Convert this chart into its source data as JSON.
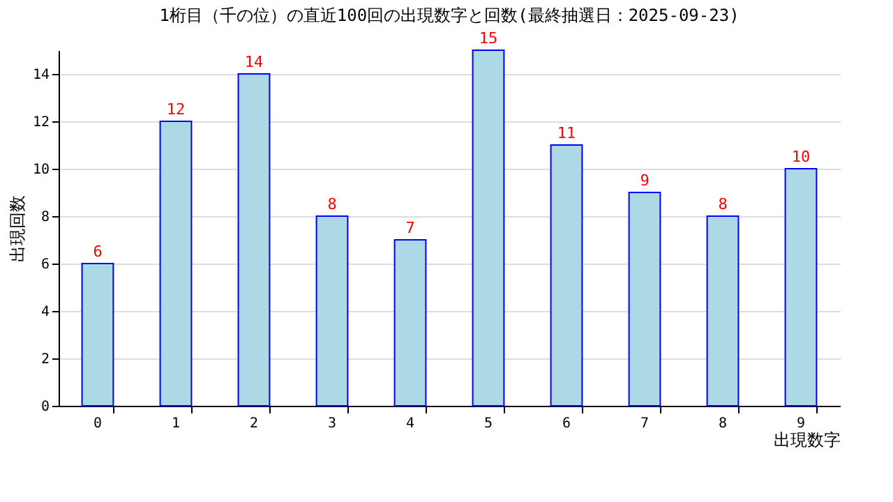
{
  "chart_data": {
    "type": "bar",
    "title": "1桁目（千の位）の直近100回の出現数字と回数(最終抽選日：2025-09-23)",
    "xlabel": "出現数字",
    "ylabel": "出現回数",
    "categories": [
      "0",
      "1",
      "2",
      "3",
      "4",
      "5",
      "6",
      "7",
      "8",
      "9"
    ],
    "values": [
      6,
      12,
      14,
      8,
      7,
      15,
      11,
      9,
      8,
      10
    ],
    "color": "#add8e6",
    "ylim": [
      0,
      15
    ],
    "yticks": [
      0,
      2,
      4,
      6,
      8,
      10,
      12,
      14
    ],
    "grid": "y",
    "data_labels": true
  }
}
